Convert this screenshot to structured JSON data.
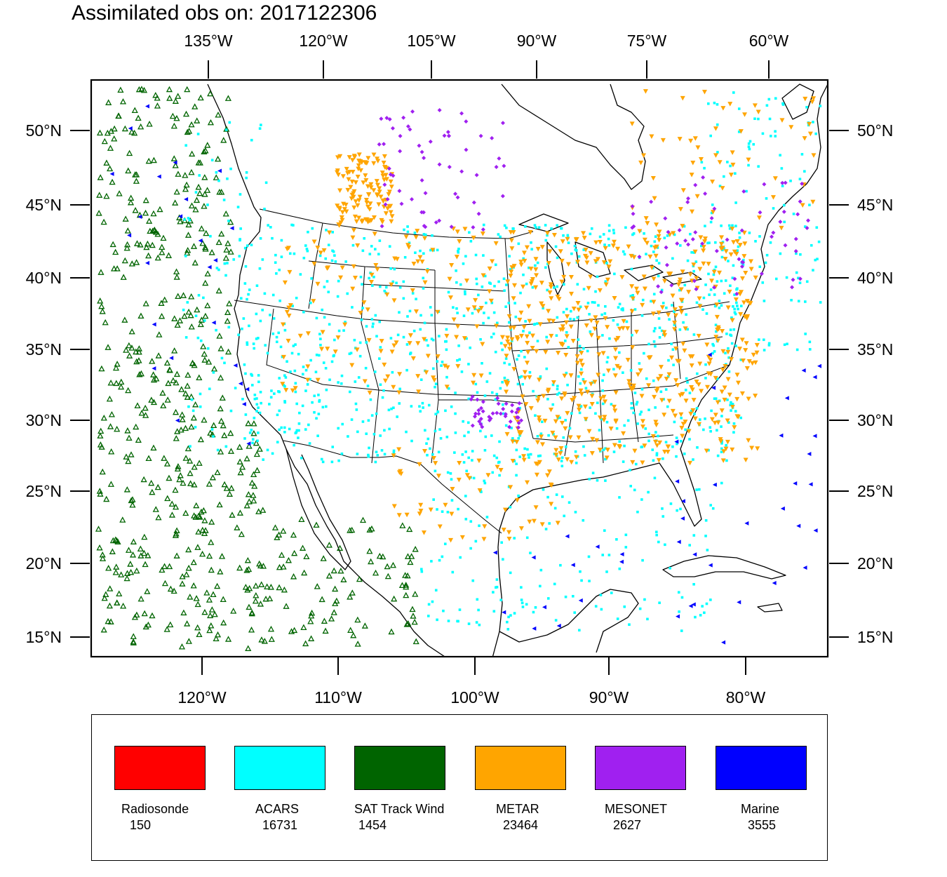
{
  "title": "Assimilated obs on: 2017122306",
  "map": {
    "projection": "Lambert conformal",
    "lat_range": [
      13.5,
      53.5
    ],
    "lon_range": [
      -138,
      -73
    ]
  },
  "axes": {
    "top_labels": [
      "135°W",
      "120°W",
      "105°W",
      "90°W",
      "75°W",
      "60°W"
    ],
    "bottom_labels": [
      "120°W",
      "110°W",
      "100°W",
      "90°W",
      "80°W"
    ],
    "left_labels": [
      "50°N",
      "45°N",
      "40°N",
      "35°N",
      "30°N",
      "25°N",
      "20°N",
      "15°N"
    ],
    "right_labels": [
      "50°N",
      "45°N",
      "40°N",
      "35°N",
      "30°N",
      "25°N",
      "20°N",
      "15°N"
    ]
  },
  "legend": [
    {
      "name": "Radiosonde",
      "count": "150",
      "color": "#ff0000"
    },
    {
      "name": "ACARS",
      "count": "16731",
      "color": "#00ffff"
    },
    {
      "name": "SAT Track Wind",
      "count": "1454",
      "color": "#006400"
    },
    {
      "name": "METAR",
      "count": "23464",
      "color": "#ffa500"
    },
    {
      "name": "MESONET",
      "count": "2627",
      "color": "#a020f0"
    },
    {
      "name": "Marine",
      "count": "3555",
      "color": "#0000ff"
    }
  ]
}
